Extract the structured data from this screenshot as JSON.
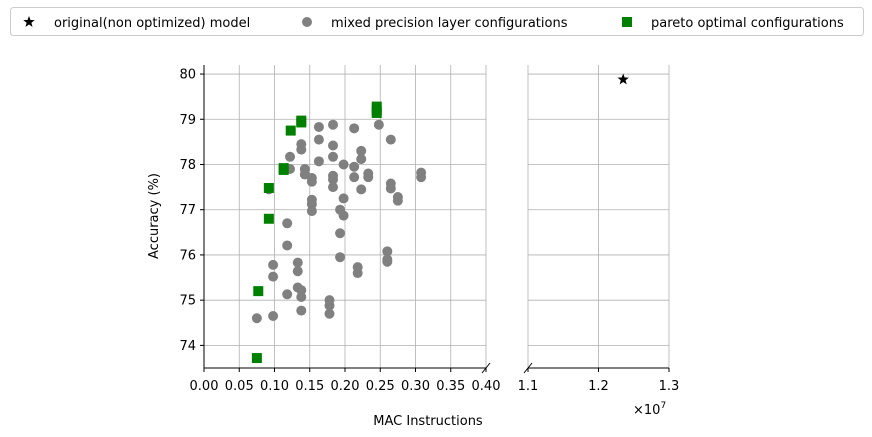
{
  "chart_data": {
    "type": "scatter",
    "title": "",
    "xlabel": "MAC Instructions",
    "ylabel": "Accuracy (%)",
    "x_multiplier_label": "×10",
    "x_multiplier_exponent": "7",
    "x_units": "1e7",
    "grid": true,
    "legend_position": "top",
    "ylim": [
      73.5,
      80.2
    ],
    "yticks": [
      "74",
      "75",
      "76",
      "77",
      "78",
      "79",
      "80"
    ],
    "panels": [
      {
        "name": "left",
        "xlim": [
          0.0,
          0.4
        ],
        "xticks": [
          "0.00",
          "0.05",
          "0.10",
          "0.15",
          "0.20",
          "0.25",
          "0.30",
          "0.35",
          "0.40"
        ]
      },
      {
        "name": "right",
        "xlim": [
          1.1,
          1.3
        ],
        "xticks": [
          "1.1",
          "1.2",
          "1.3"
        ]
      }
    ],
    "series": [
      {
        "name": "original(non optimized) model",
        "marker": "star",
        "color": "#000000",
        "points": [
          [
            1.235,
            79.88
          ]
        ]
      },
      {
        "name": "mixed precision layer configurations",
        "marker": "circle",
        "color": "#808080",
        "points": [
          [
            0.075,
            74.6
          ],
          [
            0.098,
            74.65
          ],
          [
            0.098,
            75.52
          ],
          [
            0.098,
            75.78
          ],
          [
            0.092,
            77.45
          ],
          [
            0.118,
            75.13
          ],
          [
            0.118,
            76.21
          ],
          [
            0.118,
            76.7
          ],
          [
            0.122,
            77.9
          ],
          [
            0.122,
            78.17
          ],
          [
            0.133,
            75.28
          ],
          [
            0.133,
            75.64
          ],
          [
            0.133,
            75.83
          ],
          [
            0.138,
            74.77
          ],
          [
            0.138,
            75.07
          ],
          [
            0.138,
            75.22
          ],
          [
            0.138,
            78.33
          ],
          [
            0.138,
            78.45
          ],
          [
            0.143,
            77.78
          ],
          [
            0.143,
            77.9
          ],
          [
            0.153,
            76.97
          ],
          [
            0.153,
            77.12
          ],
          [
            0.153,
            77.22
          ],
          [
            0.153,
            77.62
          ],
          [
            0.153,
            77.7
          ],
          [
            0.163,
            78.07
          ],
          [
            0.163,
            78.55
          ],
          [
            0.163,
            78.83
          ],
          [
            0.178,
            74.7
          ],
          [
            0.178,
            74.88
          ],
          [
            0.178,
            75.0
          ],
          [
            0.183,
            77.5
          ],
          [
            0.183,
            77.67
          ],
          [
            0.183,
            77.75
          ],
          [
            0.183,
            78.17
          ],
          [
            0.183,
            78.42
          ],
          [
            0.183,
            78.88
          ],
          [
            0.193,
            75.95
          ],
          [
            0.193,
            76.48
          ],
          [
            0.193,
            77.0
          ],
          [
            0.198,
            76.87
          ],
          [
            0.198,
            77.25
          ],
          [
            0.198,
            78.0
          ],
          [
            0.213,
            77.72
          ],
          [
            0.213,
            77.95
          ],
          [
            0.213,
            78.8
          ],
          [
            0.218,
            75.6
          ],
          [
            0.218,
            75.73
          ],
          [
            0.223,
            77.45
          ],
          [
            0.223,
            78.12
          ],
          [
            0.223,
            78.3
          ],
          [
            0.233,
            77.72
          ],
          [
            0.233,
            77.8
          ],
          [
            0.248,
            78.88
          ],
          [
            0.26,
            75.85
          ],
          [
            0.26,
            75.9
          ],
          [
            0.26,
            76.08
          ],
          [
            0.265,
            77.47
          ],
          [
            0.265,
            77.58
          ],
          [
            0.265,
            78.55
          ],
          [
            0.275,
            77.2
          ],
          [
            0.275,
            77.28
          ],
          [
            0.308,
            77.72
          ],
          [
            0.308,
            77.82
          ]
        ]
      },
      {
        "name": "pareto optimal configurations",
        "marker": "square",
        "color": "#008000",
        "points": [
          [
            0.075,
            73.72
          ],
          [
            0.077,
            75.2
          ],
          [
            0.092,
            76.8
          ],
          [
            0.092,
            77.48
          ],
          [
            0.113,
            77.88
          ],
          [
            0.113,
            77.92
          ],
          [
            0.123,
            78.75
          ],
          [
            0.138,
            78.93
          ],
          [
            0.138,
            78.97
          ],
          [
            0.245,
            79.14
          ],
          [
            0.245,
            79.2
          ],
          [
            0.245,
            79.28
          ]
        ]
      }
    ]
  }
}
